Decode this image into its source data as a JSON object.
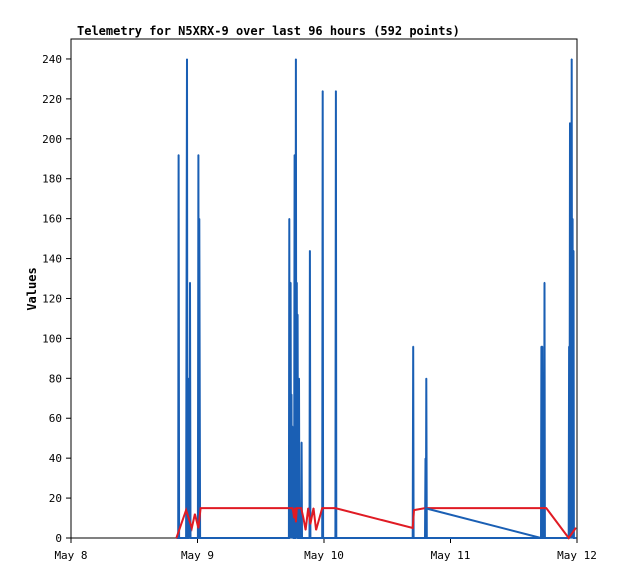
{
  "chart_data": {
    "type": "line",
    "title": "Telemetry for N5XRX-9 over last 96 hours (592 points)",
    "xlabel": "",
    "ylabel": "Values",
    "xlim": [
      "2024-05-08 00:00",
      "2024-05-12 00:00"
    ],
    "ylim": [
      0,
      250
    ],
    "x_ticks": [
      {
        "value": "2024-05-08 00:00",
        "label": "May 8"
      },
      {
        "value": "2024-05-09 00:00",
        "label": "May 9"
      },
      {
        "value": "2024-05-10 00:00",
        "label": "May 10"
      },
      {
        "value": "2024-05-11 00:00",
        "label": "May 11"
      },
      {
        "value": "2024-05-12 00:00",
        "label": "May 12"
      }
    ],
    "y_ticks": [
      0,
      20,
      40,
      60,
      80,
      100,
      120,
      140,
      160,
      180,
      200,
      220,
      240
    ],
    "grid": false,
    "legend": "none",
    "series": [
      {
        "color": "#1a5fb4",
        "x": [
          "2024-05-08 20:00",
          "2024-05-08 20:20",
          "2024-05-08 20:25",
          "2024-05-08 20:30",
          "2024-05-08 20:35",
          "2024-05-08 20:40",
          "2024-05-08 20:45",
          "2024-05-08 21:50",
          "2024-05-08 22:00",
          "2024-05-08 22:05",
          "2024-05-08 22:10",
          "2024-05-08 22:15",
          "2024-05-08 22:20",
          "2024-05-08 22:30",
          "2024-05-08 22:35",
          "2024-05-08 22:40",
          "2024-05-08 22:45",
          "2024-05-08 22:55",
          "2024-05-08 23:00",
          "2024-05-08 23:05",
          "2024-05-09 00:05",
          "2024-05-09 00:10",
          "2024-05-09 00:15",
          "2024-05-09 00:20",
          "2024-05-09 00:30",
          "2024-05-09 00:35",
          "2024-05-09 17:20",
          "2024-05-09 17:25",
          "2024-05-09 17:30",
          "2024-05-09 17:40",
          "2024-05-09 17:45",
          "2024-05-09 17:50",
          "2024-05-09 17:55",
          "2024-05-09 18:00",
          "2024-05-09 18:05",
          "2024-05-09 18:10",
          "2024-05-09 18:15",
          "2024-05-09 18:20",
          "2024-05-09 18:25",
          "2024-05-09 18:30",
          "2024-05-09 18:35",
          "2024-05-09 18:40",
          "2024-05-09 18:45",
          "2024-05-09 18:50",
          "2024-05-09 18:55",
          "2024-05-09 19:00",
          "2024-05-09 19:05",
          "2024-05-09 19:10",
          "2024-05-09 19:15",
          "2024-05-09 19:20",
          "2024-05-09 19:40",
          "2024-05-09 19:45",
          "2024-05-09 19:50",
          "2024-05-09 19:55",
          "2024-05-09 20:00",
          "2024-05-09 20:05",
          "2024-05-09 21:15",
          "2024-05-09 21:20",
          "2024-05-09 21:25",
          "2024-05-09 23:40",
          "2024-05-09 23:45",
          "2024-05-09 23:50",
          "2024-05-10 02:10",
          "2024-05-10 02:15",
          "2024-05-10 02:20",
          "2024-05-10 02:25",
          "2024-05-10 02:30",
          "2024-05-10 02:35",
          "2024-05-10 16:50",
          "2024-05-10 16:55",
          "2024-05-10 17:00",
          "2024-05-10 17:05",
          "2024-05-10 19:10",
          "2024-05-10 19:15",
          "2024-05-10 19:20",
          "2024-05-10 19:25",
          "2024-05-10 19:30",
          "2024-05-10 19:35",
          "2024-05-11 17:10",
          "2024-05-11 17:15",
          "2024-05-11 17:20",
          "2024-05-11 17:25",
          "2024-05-11 17:30",
          "2024-05-11 17:35",
          "2024-05-11 17:40",
          "2024-05-11 17:45",
          "2024-05-11 17:50",
          "2024-05-11 17:55",
          "2024-05-11 18:00",
          "2024-05-11 18:05",
          "2024-05-11 18:10",
          "2024-05-11 22:25",
          "2024-05-11 22:30",
          "2024-05-11 22:35",
          "2024-05-11 22:40",
          "2024-05-11 22:45",
          "2024-05-11 22:50",
          "2024-05-11 22:55",
          "2024-05-11 23:00",
          "2024-05-11 23:05",
          "2024-05-11 23:10",
          "2024-05-11 23:15",
          "2024-05-11 23:20",
          "2024-05-11 23:25",
          "2024-05-11 23:30",
          "2024-05-11 23:35",
          "2024-05-11 23:40",
          "2024-05-11 23:45"
        ],
        "y": [
          0,
          0,
          192,
          0,
          0,
          0,
          0,
          0,
          240,
          0,
          0,
          0,
          80,
          0,
          128,
          0,
          0,
          0,
          0,
          0,
          0,
          192,
          0,
          160,
          0,
          0,
          0,
          160,
          0,
          128,
          0,
          72,
          0,
          56,
          0,
          40,
          0,
          0,
          192,
          0,
          0,
          240,
          0,
          128,
          0,
          112,
          0,
          0,
          80,
          0,
          0,
          48,
          0,
          0,
          0,
          0,
          0,
          144,
          0,
          0,
          224,
          0,
          0,
          224,
          0,
          0,
          0,
          0,
          0,
          96,
          0,
          0,
          0,
          40,
          0,
          80,
          0,
          0,
          0,
          96,
          0,
          96,
          0,
          0,
          80,
          0,
          128,
          0,
          0,
          0,
          0,
          0,
          96,
          0,
          208,
          0,
          128,
          0,
          240,
          0,
          160,
          0,
          144,
          0,
          0,
          0,
          0,
          0
        ]
      },
      {
        "color": "#e01b24",
        "x": [
          "2024-05-08 20:00",
          "2024-05-08 21:50",
          "2024-05-08 22:55",
          "2024-05-08 23:30",
          "2024-05-09 00:10",
          "2024-05-09 00:35",
          "2024-05-09 17:20",
          "2024-05-09 17:30",
          "2024-05-09 17:40",
          "2024-05-09 17:50",
          "2024-05-09 18:00",
          "2024-05-09 18:10",
          "2024-05-09 18:20",
          "2024-05-09 18:30",
          "2024-05-09 18:40",
          "2024-05-09 18:50",
          "2024-05-09 19:00",
          "2024-05-09 19:10",
          "2024-05-09 19:20",
          "2024-05-09 19:40",
          "2024-05-09 20:05",
          "2024-05-09 20:30",
          "2024-05-09 21:00",
          "2024-05-09 21:25",
          "2024-05-09 22:00",
          "2024-05-09 22:30",
          "2024-05-09 23:40",
          "2024-05-10 00:30",
          "2024-05-10 01:00",
          "2024-05-10 01:40",
          "2024-05-10 02:10",
          "2024-05-10 16:50",
          "2024-05-10 17:05",
          "2024-05-10 19:10",
          "2024-05-10 19:35",
          "2024-05-11 17:10",
          "2024-05-11 18:10",
          "2024-05-11 22:25",
          "2024-05-11 23:45"
        ],
        "y": [
          0,
          14,
          5,
          12,
          5,
          15,
          15,
          15,
          15,
          15,
          15,
          13,
          10,
          15,
          8,
          15,
          15,
          15,
          15,
          15,
          10,
          4,
          15,
          7,
          15,
          4,
          15,
          15,
          15,
          15,
          15,
          5,
          14,
          15,
          15,
          15,
          15,
          0,
          5
        ]
      },
      {
        "color": "#1a5fb4",
        "x": [
          "2024-05-10 19:10",
          "2024-05-11 17:10"
        ],
        "y": [
          15,
          0
        ]
      }
    ]
  }
}
